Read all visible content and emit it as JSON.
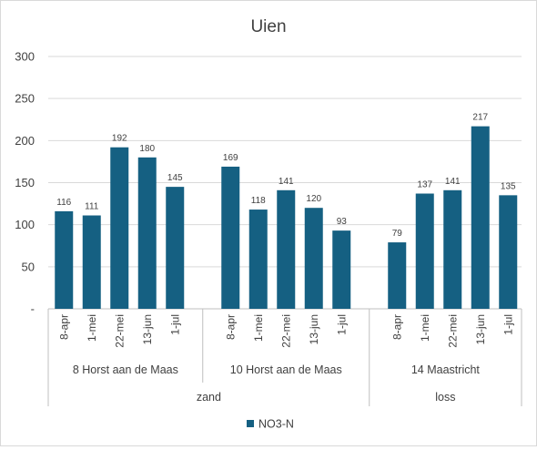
{
  "chart_data": {
    "type": "bar",
    "title": "Uien",
    "xlabel": "",
    "ylabel": "",
    "ylim": [
      0,
      300
    ],
    "yticks": [
      "-",
      "50",
      "100",
      "150",
      "200",
      "250",
      "300"
    ],
    "grid": true,
    "legend_position": "bottom",
    "color": "#156082",
    "series": [
      {
        "name": "NO3-N",
        "values": [
          116,
          111,
          192,
          180,
          145,
          169,
          118,
          141,
          120,
          93,
          79,
          137,
          141,
          217,
          135
        ]
      }
    ],
    "categories": [
      "8-apr",
      "1-mei",
      "22-mei",
      "13-jun",
      "1-jul",
      "8-apr",
      "1-mei",
      "22-mei",
      "13-jun",
      "1-jul",
      "8-apr",
      "1-mei",
      "22-mei",
      "13-jun",
      "1-jul"
    ],
    "groups": [
      {
        "label": "8 Horst aan de Maas",
        "start": 0,
        "end": 4
      },
      {
        "label": "10 Horst aan de Maas",
        "start": 5,
        "end": 9
      },
      {
        "label": "14  Maastricht",
        "start": 10,
        "end": 14
      }
    ],
    "supergroups": [
      {
        "label": "zand",
        "start": 0,
        "end": 9
      },
      {
        "label": "loss",
        "start": 10,
        "end": 14
      }
    ]
  }
}
